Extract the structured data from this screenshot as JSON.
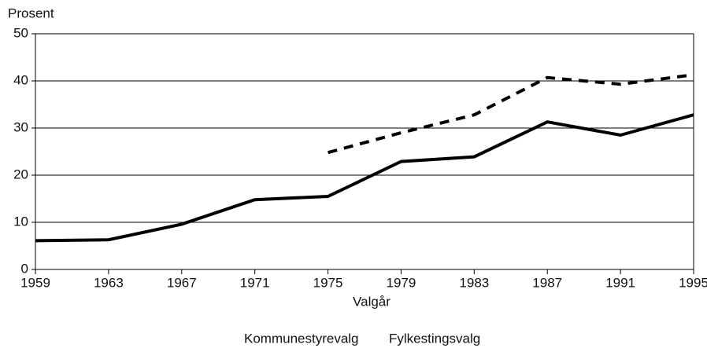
{
  "chart_data": {
    "type": "line",
    "y_axis_label": "Prosent",
    "x_axis_label": "Valgår",
    "x": [
      1959,
      1963,
      1967,
      1971,
      1975,
      1979,
      1983,
      1987,
      1991,
      1995
    ],
    "series": [
      {
        "name": "Kommunestyrevalg",
        "color": "#000000",
        "style": "solid",
        "values": [
          6.1,
          6.3,
          9.6,
          14.8,
          15.5,
          22.9,
          23.9,
          31.3,
          28.5,
          32.8
        ]
      },
      {
        "name": "Fylkestingsvalg",
        "color": "#000000",
        "style": "dashed",
        "values": [
          null,
          null,
          null,
          null,
          24.8,
          29.0,
          32.8,
          40.7,
          39.3,
          41.3
        ]
      }
    ],
    "xlim": [
      1959,
      1995
    ],
    "xticks": [
      1959,
      1963,
      1967,
      1971,
      1975,
      1979,
      1983,
      1987,
      1991,
      1995
    ],
    "ylim": [
      0,
      50
    ],
    "yticks": [
      0,
      10,
      20,
      30,
      40,
      50
    ],
    "grid": true
  }
}
